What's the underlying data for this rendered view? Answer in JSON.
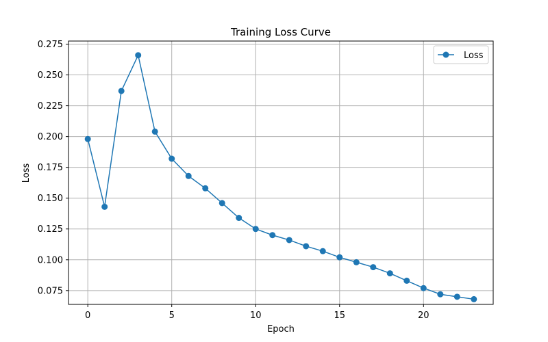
{
  "chart_data": {
    "type": "line",
    "title": "Training Loss Curve",
    "xlabel": "Epoch",
    "ylabel": "Loss",
    "xlim": [
      -1.15,
      24.15
    ],
    "ylim": [
      0.0638,
      0.2775
    ],
    "xticks": [
      0,
      5,
      10,
      15,
      20
    ],
    "yticks": [
      0.075,
      0.1,
      0.125,
      0.15,
      0.175,
      0.2,
      0.225,
      0.25,
      0.275
    ],
    "ytick_labels": [
      "0.075",
      "0.100",
      "0.125",
      "0.150",
      "0.175",
      "0.200",
      "0.225",
      "0.250",
      "0.275"
    ],
    "grid": true,
    "legend_position": "top-right",
    "series": [
      {
        "name": "Loss",
        "color": "#1f77b4",
        "marker": "circle",
        "x": [
          0,
          1,
          2,
          3,
          4,
          5,
          6,
          7,
          8,
          9,
          10,
          11,
          12,
          13,
          14,
          15,
          16,
          17,
          18,
          19,
          20,
          21,
          22,
          23
        ],
        "values": [
          0.198,
          0.143,
          0.237,
          0.266,
          0.204,
          0.182,
          0.168,
          0.158,
          0.146,
          0.134,
          0.125,
          0.12,
          0.116,
          0.111,
          0.107,
          0.102,
          0.098,
          0.094,
          0.089,
          0.083,
          0.077,
          0.072,
          0.07,
          0.068
        ]
      }
    ]
  }
}
